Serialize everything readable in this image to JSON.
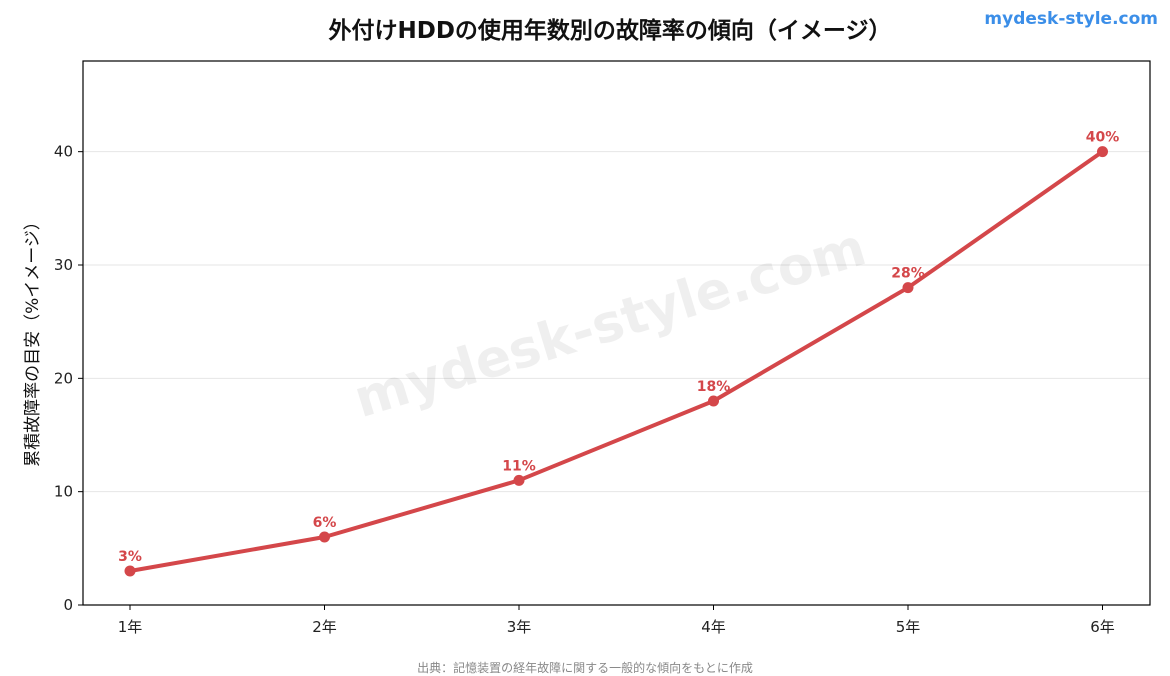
{
  "brand": "mydesk-style.com",
  "watermark": "mydesk-style.com",
  "source_note": "出典：記憶装置の経年故障に関する一般的な傾向をもとに作成",
  "colors": {
    "series": "#d4474a",
    "brand": "#3b8ee8",
    "grid": "#e6e6e6",
    "axis": "#000000"
  },
  "chart_data": {
    "type": "line",
    "title": "外付けHDDの使用年数別の故障率の傾向（イメージ）",
    "xlabel": "",
    "ylabel": "累積故障率の目安（%イメージ）",
    "categories": [
      "1年",
      "2年",
      "3年",
      "4年",
      "5年",
      "6年"
    ],
    "series": [
      {
        "values": [
          3,
          6,
          11,
          18,
          28,
          40
        ],
        "data_labels": [
          "3%",
          "6%",
          "11%",
          "18%",
          "28%",
          "40%"
        ]
      }
    ],
    "ylim": [
      0,
      48
    ],
    "yticks": [
      0,
      10,
      20,
      30,
      40
    ],
    "grid": "horizontal",
    "legend": "none"
  }
}
